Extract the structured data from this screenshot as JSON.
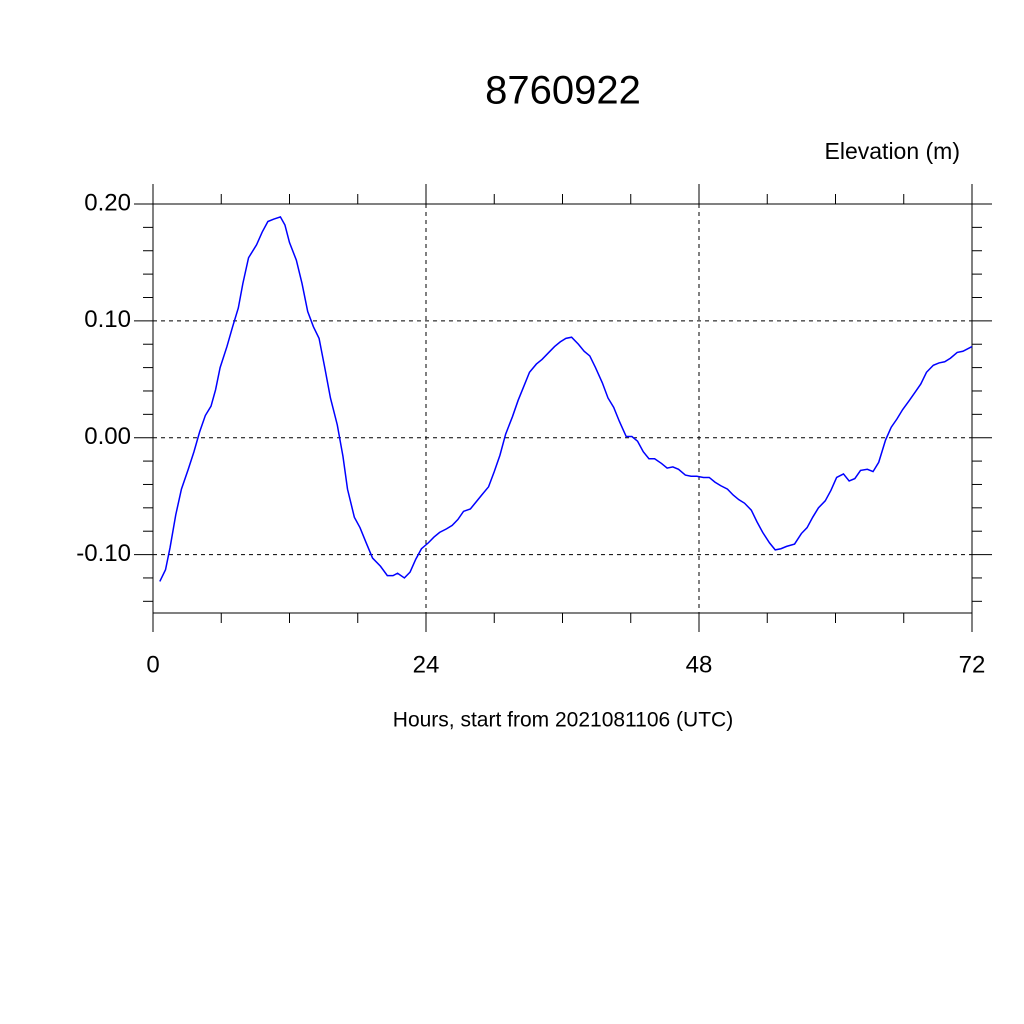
{
  "chart_data": {
    "type": "line",
    "title": "8760922",
    "ylabel": "Elevation (m)",
    "xlabel": "Hours, start from 2021081106 (UTC)",
    "xlim": [
      0,
      72
    ],
    "xticks": [
      0,
      24,
      48,
      72
    ],
    "xminorticks": [
      6,
      12,
      18,
      30,
      36,
      42,
      54,
      60,
      66
    ],
    "ylim": [
      -0.15,
      0.2
    ],
    "yticks": [
      {
        "value": -0.1,
        "label": "-0.10"
      },
      {
        "value": 0,
        "label": "0.00"
      },
      {
        "value": 0.1,
        "label": "0.10"
      },
      {
        "value": 0.2,
        "label": "0.20"
      }
    ],
    "yminorticks": [
      -0.14,
      -0.12,
      -0.08,
      -0.06,
      -0.04,
      -0.02,
      0.02,
      0.04,
      0.06,
      0.08,
      0.12,
      0.14,
      0.16,
      0.18
    ],
    "grid": true,
    "series": [
      {
        "color": "#0000ff",
        "x": [
          0.6,
          1.1,
          1.5,
          2.0,
          2.5,
          3.1,
          3.6,
          4.1,
          4.6,
          5.1,
          5.5,
          5.9,
          6.5,
          7.0,
          7.5,
          7.9,
          8.4,
          9.1,
          9.6,
          10.1,
          10.6,
          11.2,
          11.6,
          12.0,
          12.6,
          13.1,
          13.6,
          14.1,
          14.6,
          15.1,
          15.6,
          16.2,
          16.7,
          17.1,
          17.7,
          18.2,
          18.7,
          19.3,
          20.0,
          20.6,
          21.1,
          21.5,
          22.1,
          22.6,
          23.1,
          23.6,
          24.2,
          24.7,
          25.2,
          25.8,
          26.3,
          26.8,
          27.3,
          27.9,
          28.4,
          28.9,
          29.5,
          30.0,
          30.5,
          31.0,
          31.6,
          32.1,
          32.6,
          33.1,
          33.7,
          34.2,
          34.7,
          35.3,
          35.8,
          36.3,
          36.8,
          37.4,
          37.9,
          38.4,
          38.9,
          39.5,
          40.0,
          40.5,
          41.0,
          41.6,
          42.1,
          42.6,
          43.1,
          43.6,
          44.1,
          44.7,
          45.2,
          45.7,
          46.2,
          46.8,
          47.3,
          47.8,
          48.4,
          48.9,
          49.4,
          49.9,
          50.5,
          51.0,
          51.5,
          52.0,
          52.6,
          53.1,
          53.6,
          54.2,
          54.7,
          55.2,
          55.7,
          56.4,
          57.0,
          57.5,
          58.0,
          58.5,
          59.1,
          59.6,
          60.1,
          60.7,
          61.2,
          61.7,
          62.2,
          62.8,
          63.3,
          63.8,
          64.4,
          64.9,
          65.4,
          65.9,
          66.5,
          67.0,
          67.5,
          68.0,
          68.6,
          69.1,
          69.6,
          70.1,
          70.7,
          71.2,
          72.0
        ],
        "values": [
          -0.123,
          -0.113,
          -0.094,
          -0.066,
          -0.044,
          -0.027,
          -0.012,
          0.005,
          0.019,
          0.027,
          0.041,
          0.06,
          0.078,
          0.095,
          0.111,
          0.132,
          0.154,
          0.165,
          0.176,
          0.185,
          0.187,
          0.189,
          0.182,
          0.167,
          0.152,
          0.132,
          0.108,
          0.095,
          0.085,
          0.06,
          0.034,
          0.011,
          -0.016,
          -0.044,
          -0.068,
          -0.077,
          -0.089,
          -0.103,
          -0.11,
          -0.118,
          -0.118,
          -0.116,
          -0.12,
          -0.115,
          -0.104,
          -0.095,
          -0.09,
          -0.085,
          -0.081,
          -0.078,
          -0.075,
          -0.07,
          -0.063,
          -0.061,
          -0.055,
          -0.049,
          -0.042,
          -0.029,
          -0.015,
          0.003,
          0.018,
          0.032,
          0.044,
          0.056,
          0.063,
          0.067,
          0.072,
          0.078,
          0.082,
          0.085,
          0.086,
          0.08,
          0.074,
          0.07,
          0.06,
          0.047,
          0.034,
          0.026,
          0.014,
          0.001,
          0.001,
          -0.003,
          -0.012,
          -0.018,
          -0.018,
          -0.022,
          -0.026,
          -0.025,
          -0.027,
          -0.032,
          -0.033,
          -0.033,
          -0.034,
          -0.034,
          -0.038,
          -0.041,
          -0.044,
          -0.049,
          -0.053,
          -0.056,
          -0.062,
          -0.072,
          -0.081,
          -0.09,
          -0.096,
          -0.095,
          -0.093,
          -0.091,
          -0.082,
          -0.077,
          -0.068,
          -0.06,
          -0.054,
          -0.045,
          -0.034,
          -0.031,
          -0.037,
          -0.035,
          -0.028,
          -0.027,
          -0.029,
          -0.021,
          -0.002,
          0.009,
          0.016,
          0.024,
          0.032,
          0.039,
          0.046,
          0.056,
          0.062,
          0.064,
          0.065,
          0.068,
          0.073,
          0.074,
          0.078
        ]
      }
    ]
  }
}
